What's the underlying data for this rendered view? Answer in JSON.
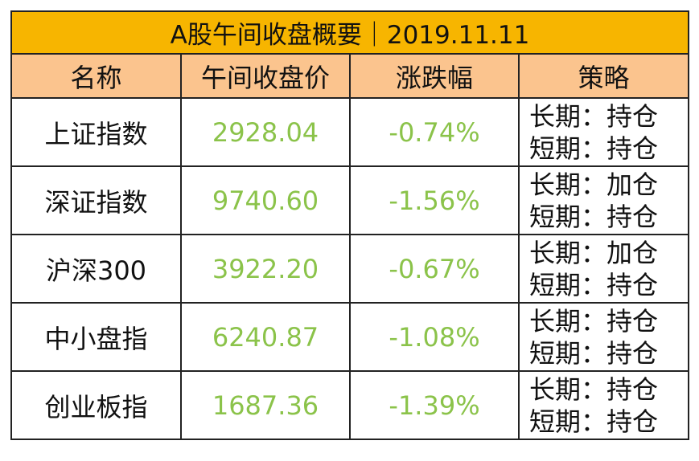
{
  "table": {
    "title": "A股午间收盘概要｜2019.11.11",
    "headers": [
      "名称",
      "午间收盘价",
      "涨跌幅",
      "策略"
    ],
    "rows": [
      [
        "上证指数",
        "2928.04",
        "-0.74%",
        [
          "长期：持仓",
          "短期：持仓"
        ]
      ],
      [
        "深证指数",
        "9740.60",
        "-1.56%",
        [
          "长期：加仓",
          "短期：持仓"
        ]
      ],
      [
        "沪深300",
        "3922.20",
        "-0.67%",
        [
          "长期：加仓",
          "短期：持仓"
        ]
      ],
      [
        "中小盘指",
        "6240.87",
        "-1.08%",
        [
          "长期：持仓",
          "短期：持仓"
        ]
      ],
      [
        "创业板指",
        "1687.36",
        "-1.39%",
        [
          "长期：持仓",
          "短期：持仓"
        ]
      ]
    ]
  }
}
